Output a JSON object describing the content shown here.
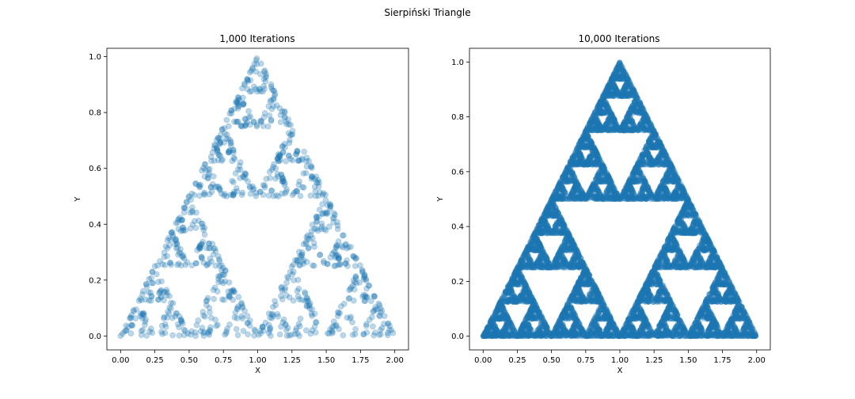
{
  "figure": {
    "suptitle": "Sierpiński Triangle"
  },
  "chart_data": [
    {
      "type": "scatter",
      "title": "1,000 Iterations",
      "xlabel": "X",
      "ylabel": "Y",
      "xlim": [
        -0.1,
        2.1
      ],
      "ylim": [
        -0.05,
        1.03
      ],
      "xticks": [
        "0.00",
        "0.25",
        "0.50",
        "0.75",
        "1.00",
        "1.25",
        "1.50",
        "1.75",
        "2.00"
      ],
      "yticks": [
        "0.0",
        "0.2",
        "0.4",
        "0.6",
        "0.8",
        "1.0"
      ],
      "grid": false,
      "marker_color": "#1f77b4",
      "marker_alpha": 0.3,
      "vertices": [
        [
          0,
          0
        ],
        [
          2,
          0
        ],
        [
          1,
          1
        ]
      ],
      "start_point": [
        0,
        0
      ],
      "iterations": 1000
    },
    {
      "type": "scatter",
      "title": "10,000 Iterations",
      "xlabel": "X",
      "ylabel": "Y",
      "xlim": [
        -0.1,
        2.1
      ],
      "ylim": [
        -0.05,
        1.05
      ],
      "xticks": [
        "0.00",
        "0.25",
        "0.50",
        "0.75",
        "1.00",
        "1.25",
        "1.50",
        "1.75",
        "2.00"
      ],
      "yticks": [
        "0.0",
        "0.2",
        "0.4",
        "0.6",
        "0.8",
        "1.0"
      ],
      "grid": false,
      "marker_color": "#1f77b4",
      "marker_alpha": 0.3,
      "vertices": [
        [
          0,
          0
        ],
        [
          2,
          0
        ],
        [
          1,
          1
        ]
      ],
      "start_point": [
        0,
        0
      ],
      "iterations": 10000
    }
  ]
}
